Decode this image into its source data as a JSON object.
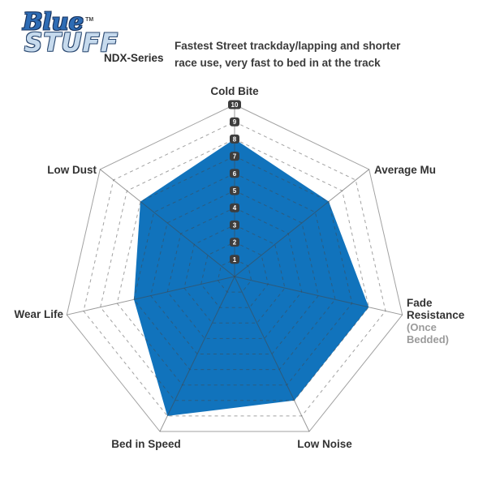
{
  "header": {
    "logo": {
      "brand_top": "Blue",
      "trademark": "TM",
      "brand_bottom": "STUFF",
      "series": "NDX-Series"
    },
    "description_line1": "Fastest Street trackday/lapping and shorter",
    "description_line2": "race use, very fast to bed in at the track"
  },
  "chart_data": {
    "type": "radar",
    "title": "",
    "axes": [
      {
        "label": "Cold Bite"
      },
      {
        "label": "Average Mu"
      },
      {
        "label": "Fade Resistance",
        "sublabel": "(Once Bedded)"
      },
      {
        "label": "Low Noise"
      },
      {
        "label": "Bed in Speed"
      },
      {
        "label": "Wear Life"
      },
      {
        "label": "Low Dust"
      }
    ],
    "values": [
      8,
      7,
      8,
      8,
      9,
      6,
      7
    ],
    "scale": {
      "min": 1,
      "max": 10
    },
    "ticks": [
      1,
      2,
      3,
      4,
      5,
      6,
      7,
      8,
      9,
      10
    ],
    "grid": "outer-ring-solid-inner-rings-dashed",
    "legend": "none",
    "colors": {
      "fill": "#1173bc",
      "grid": "rgba(70,70,70,0.50)",
      "spoke": "rgba(70,70,70,0.55)",
      "marker_bg": "#3d3d3d",
      "marker_text": "#ffffff",
      "label": "#333333",
      "sublabel": "#9b9b9b"
    }
  }
}
